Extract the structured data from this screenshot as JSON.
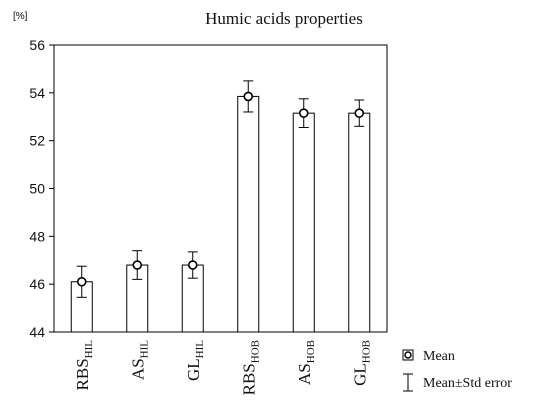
{
  "chart_data": {
    "type": "bar",
    "title": "Humic acids properties",
    "ylabel": "[%]",
    "xlabel": "",
    "ylim": [
      44,
      56
    ],
    "yticks": [
      44,
      46,
      48,
      50,
      52,
      54,
      56
    ],
    "grid": false,
    "categories": [
      {
        "base": "RBS",
        "sub": "HIL"
      },
      {
        "base": "AS",
        "sub": "HIL"
      },
      {
        "base": "GL",
        "sub": "HIL"
      },
      {
        "base": "RBS",
        "sub": "HOB"
      },
      {
        "base": "AS",
        "sub": "HOB"
      },
      {
        "base": "GL",
        "sub": "HOB"
      }
    ],
    "values": [
      46.1,
      46.8,
      46.8,
      53.85,
      53.15,
      53.15
    ],
    "std_error": [
      0.65,
      0.6,
      0.55,
      0.65,
      0.6,
      0.55
    ],
    "legend": {
      "position": "bottom-right",
      "items": [
        {
          "symbol": "circle",
          "label": "Mean"
        },
        {
          "symbol": "whisker",
          "label": "Mean±Std error"
        }
      ]
    },
    "colors": {
      "bar_fill": "#ffffff",
      "stroke": "#000000"
    }
  }
}
